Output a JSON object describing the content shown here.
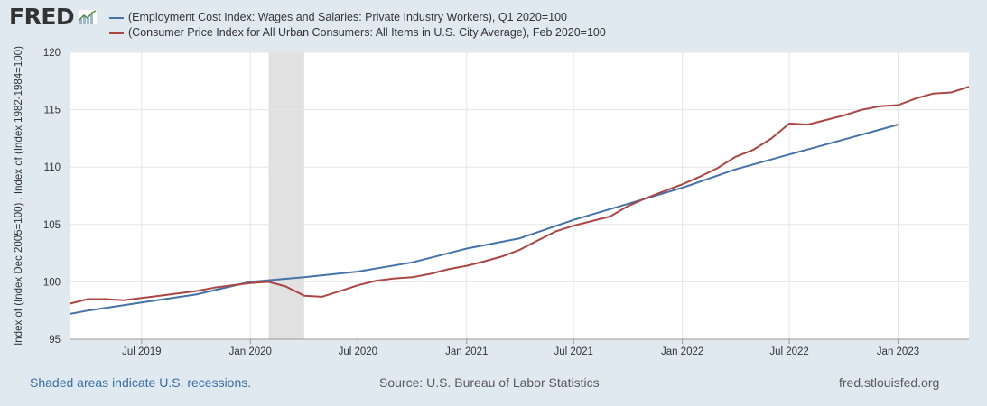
{
  "header": {
    "logo_text": "FRED",
    "logo_icon": "line-chart-icon"
  },
  "legend": [
    {
      "label": "(Employment Cost Index: Wages and Salaries: Private Industry Workers), Q1 2020=100",
      "color": "#4572a7"
    },
    {
      "label": "(Consumer Price Index for All Urban Consumers: All Items in U.S. City Average), Feb 2020=100",
      "color": "#aa4643"
    }
  ],
  "footer": {
    "recession_note": "Shaded areas indicate U.S. recessions.",
    "source": "Source: U.S. Bureau of Labor Statistics",
    "site": "fred.stlouisfed.org"
  },
  "chart_data": {
    "type": "line",
    "ylabel": "Index of (Index Dec 2005=100) , Index of (Index 1982-1984=100)",
    "ylim": [
      95,
      120
    ],
    "yticks": [
      95,
      100,
      105,
      110,
      115,
      120
    ],
    "xlim": [
      "2019-03-01",
      "2023-05-01"
    ],
    "xticks": [
      {
        "date": "2019-07-01",
        "label": "Jul 2019"
      },
      {
        "date": "2020-01-01",
        "label": "Jan 2020"
      },
      {
        "date": "2020-07-01",
        "label": "Jul 2020"
      },
      {
        "date": "2021-01-01",
        "label": "Jan 2021"
      },
      {
        "date": "2021-07-01",
        "label": "Jul 2021"
      },
      {
        "date": "2022-01-01",
        "label": "Jan 2022"
      },
      {
        "date": "2022-07-01",
        "label": "Jul 2022"
      },
      {
        "date": "2023-01-01",
        "label": "Jan 2023"
      }
    ],
    "grid": true,
    "recession": {
      "start": "2020-02-01",
      "end": "2020-04-01",
      "color": "#e1e1e1"
    },
    "series": [
      {
        "color": "#4572a7",
        "points": [
          [
            "2019-03-01",
            97.2
          ],
          [
            "2019-04-01",
            97.5
          ],
          [
            "2019-07-01",
            98.2
          ],
          [
            "2019-10-01",
            98.9
          ],
          [
            "2020-01-01",
            100.0
          ],
          [
            "2020-04-01",
            100.4
          ],
          [
            "2020-07-01",
            100.9
          ],
          [
            "2020-10-01",
            101.7
          ],
          [
            "2021-01-01",
            102.9
          ],
          [
            "2021-04-01",
            103.8
          ],
          [
            "2021-07-01",
            105.4
          ],
          [
            "2021-10-01",
            106.8
          ],
          [
            "2022-01-01",
            108.2
          ],
          [
            "2022-04-01",
            109.8
          ],
          [
            "2022-07-01",
            111.1
          ],
          [
            "2022-10-01",
            112.4
          ],
          [
            "2023-01-01",
            113.7
          ]
        ]
      },
      {
        "color": "#aa4643",
        "points": [
          [
            "2019-03-01",
            98.1
          ],
          [
            "2019-04-01",
            98.5
          ],
          [
            "2019-05-01",
            98.5
          ],
          [
            "2019-06-01",
            98.4
          ],
          [
            "2019-07-01",
            98.6
          ],
          [
            "2019-08-01",
            98.8
          ],
          [
            "2019-09-01",
            99.0
          ],
          [
            "2019-10-01",
            99.2
          ],
          [
            "2019-11-01",
            99.5
          ],
          [
            "2019-12-01",
            99.7
          ],
          [
            "2020-01-01",
            99.9
          ],
          [
            "2020-02-01",
            100.0
          ],
          [
            "2020-03-01",
            99.6
          ],
          [
            "2020-04-01",
            98.8
          ],
          [
            "2020-05-01",
            98.7
          ],
          [
            "2020-06-01",
            99.2
          ],
          [
            "2020-07-01",
            99.7
          ],
          [
            "2020-08-01",
            100.1
          ],
          [
            "2020-09-01",
            100.3
          ],
          [
            "2020-10-01",
            100.4
          ],
          [
            "2020-11-01",
            100.7
          ],
          [
            "2020-12-01",
            101.1
          ],
          [
            "2021-01-01",
            101.4
          ],
          [
            "2021-02-01",
            101.8
          ],
          [
            "2021-03-01",
            102.2
          ],
          [
            "2021-04-01",
            102.8
          ],
          [
            "2021-05-01",
            103.6
          ],
          [
            "2021-06-01",
            104.4
          ],
          [
            "2021-07-01",
            104.9
          ],
          [
            "2021-08-01",
            105.3
          ],
          [
            "2021-09-01",
            105.7
          ],
          [
            "2021-10-01",
            106.6
          ],
          [
            "2021-11-01",
            107.3
          ],
          [
            "2021-12-01",
            107.9
          ],
          [
            "2022-01-01",
            108.5
          ],
          [
            "2022-02-01",
            109.2
          ],
          [
            "2022-03-01",
            109.9
          ],
          [
            "2022-04-01",
            110.9
          ],
          [
            "2022-05-01",
            111.5
          ],
          [
            "2022-06-01",
            112.5
          ],
          [
            "2022-07-01",
            113.8
          ],
          [
            "2022-08-01",
            113.7
          ],
          [
            "2022-09-01",
            114.1
          ],
          [
            "2022-10-01",
            114.5
          ],
          [
            "2022-11-01",
            115.0
          ],
          [
            "2022-12-01",
            115.3
          ],
          [
            "2023-01-01",
            115.4
          ],
          [
            "2023-02-01",
            116.0
          ],
          [
            "2023-03-01",
            116.4
          ],
          [
            "2023-04-01",
            116.5
          ],
          [
            "2023-05-01",
            117.0
          ]
        ]
      }
    ]
  }
}
